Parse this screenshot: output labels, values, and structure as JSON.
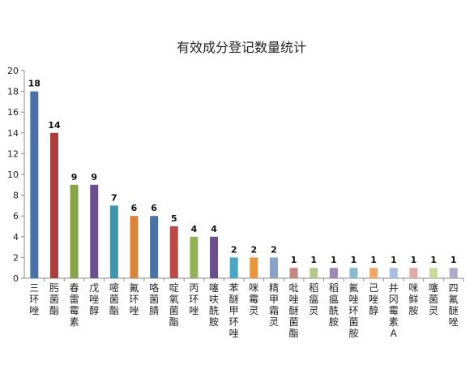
{
  "chart_data": {
    "type": "bar",
    "title": "有效成分登记数量统计",
    "categories": [
      "三环唑",
      "肟菌酯",
      "春雷霉素",
      "戊唑醇",
      "嘧菌酯",
      "氟环唑",
      "咯菌腈",
      "啶氧菌酯",
      "丙环唑",
      "噻呋酰胺",
      "苯醚甲环唑",
      "咪霉灵",
      "精甲霜灵",
      "吡唑醚菌酯",
      "稻瘟灵",
      "稻瘟酰胺",
      "氟唑环菌胺",
      "己唑醇",
      "井冈霉素A",
      "咪鲜胺",
      "噻菌灵",
      "四氟醚唑"
    ],
    "values": [
      18,
      14,
      9,
      9,
      7,
      6,
      6,
      5,
      4,
      4,
      2,
      2,
      2,
      1,
      1,
      1,
      1,
      1,
      1,
      1,
      1,
      1
    ],
    "colors": [
      "#4a72a6",
      "#a9403d",
      "#87a347",
      "#6b4e8c",
      "#3f95ab",
      "#d9833b",
      "#4a72a6",
      "#b94a48",
      "#92b25a",
      "#6b4e8c",
      "#4ba5c4",
      "#e8953f",
      "#8aa2c8",
      "#c28685",
      "#b4c98a",
      "#9b88b6",
      "#88bccc",
      "#f0a76a",
      "#a9bde0",
      "#e2a9a8",
      "#c9da9e",
      "#b4a7cc"
    ],
    "ylim": [
      0,
      20
    ],
    "yticks": [
      0,
      2,
      4,
      6,
      8,
      10,
      12,
      14,
      16,
      18,
      20
    ],
    "grid": false,
    "legend": "none"
  }
}
